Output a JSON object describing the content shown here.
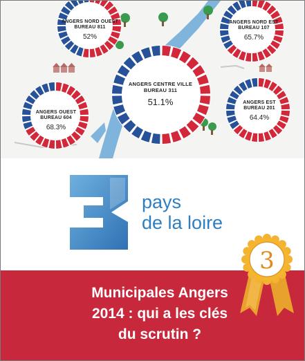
{
  "map": {
    "donuts": [
      {
        "name_line1": "ANGERS NORD OUEST",
        "name_line2": "BUREAU 811",
        "percent": "52%"
      },
      {
        "name_line1": "ANGERS NORD EST",
        "name_line2": "BUREAU 107",
        "percent": "65.7%"
      },
      {
        "name_line1": "ANGERS CENTRE VILLE",
        "name_line2": "BUREAU 311",
        "percent": "51.1%"
      },
      {
        "name_line1": "ANGERS OUEST",
        "name_line2": "BUREAU 604",
        "percent": "68.3%"
      },
      {
        "name_line1": "ANGERS EST",
        "name_line2": "BUREAU 201",
        "percent": "64.4%"
      }
    ],
    "colors": {
      "red": "#d2283a",
      "blue": "#27529a",
      "river": "#7fb4dc",
      "tree": "#3a9a4e"
    }
  },
  "logo": {
    "digit": "3",
    "text_line1": "pays",
    "text_line2": "de la loire",
    "colors": {
      "logo_blue": "#3f8bc9",
      "text_blue": "#2d7fc1"
    }
  },
  "badge": {
    "number": "3",
    "colors": {
      "gold": "#f4b233",
      "ribbon": "#e9a12d"
    }
  },
  "banner": {
    "title_line1": "Municipales Angers",
    "title_line2": "2014 : qui a les clés",
    "title_line3": "du scrutin ?",
    "color": "#c8283c"
  }
}
